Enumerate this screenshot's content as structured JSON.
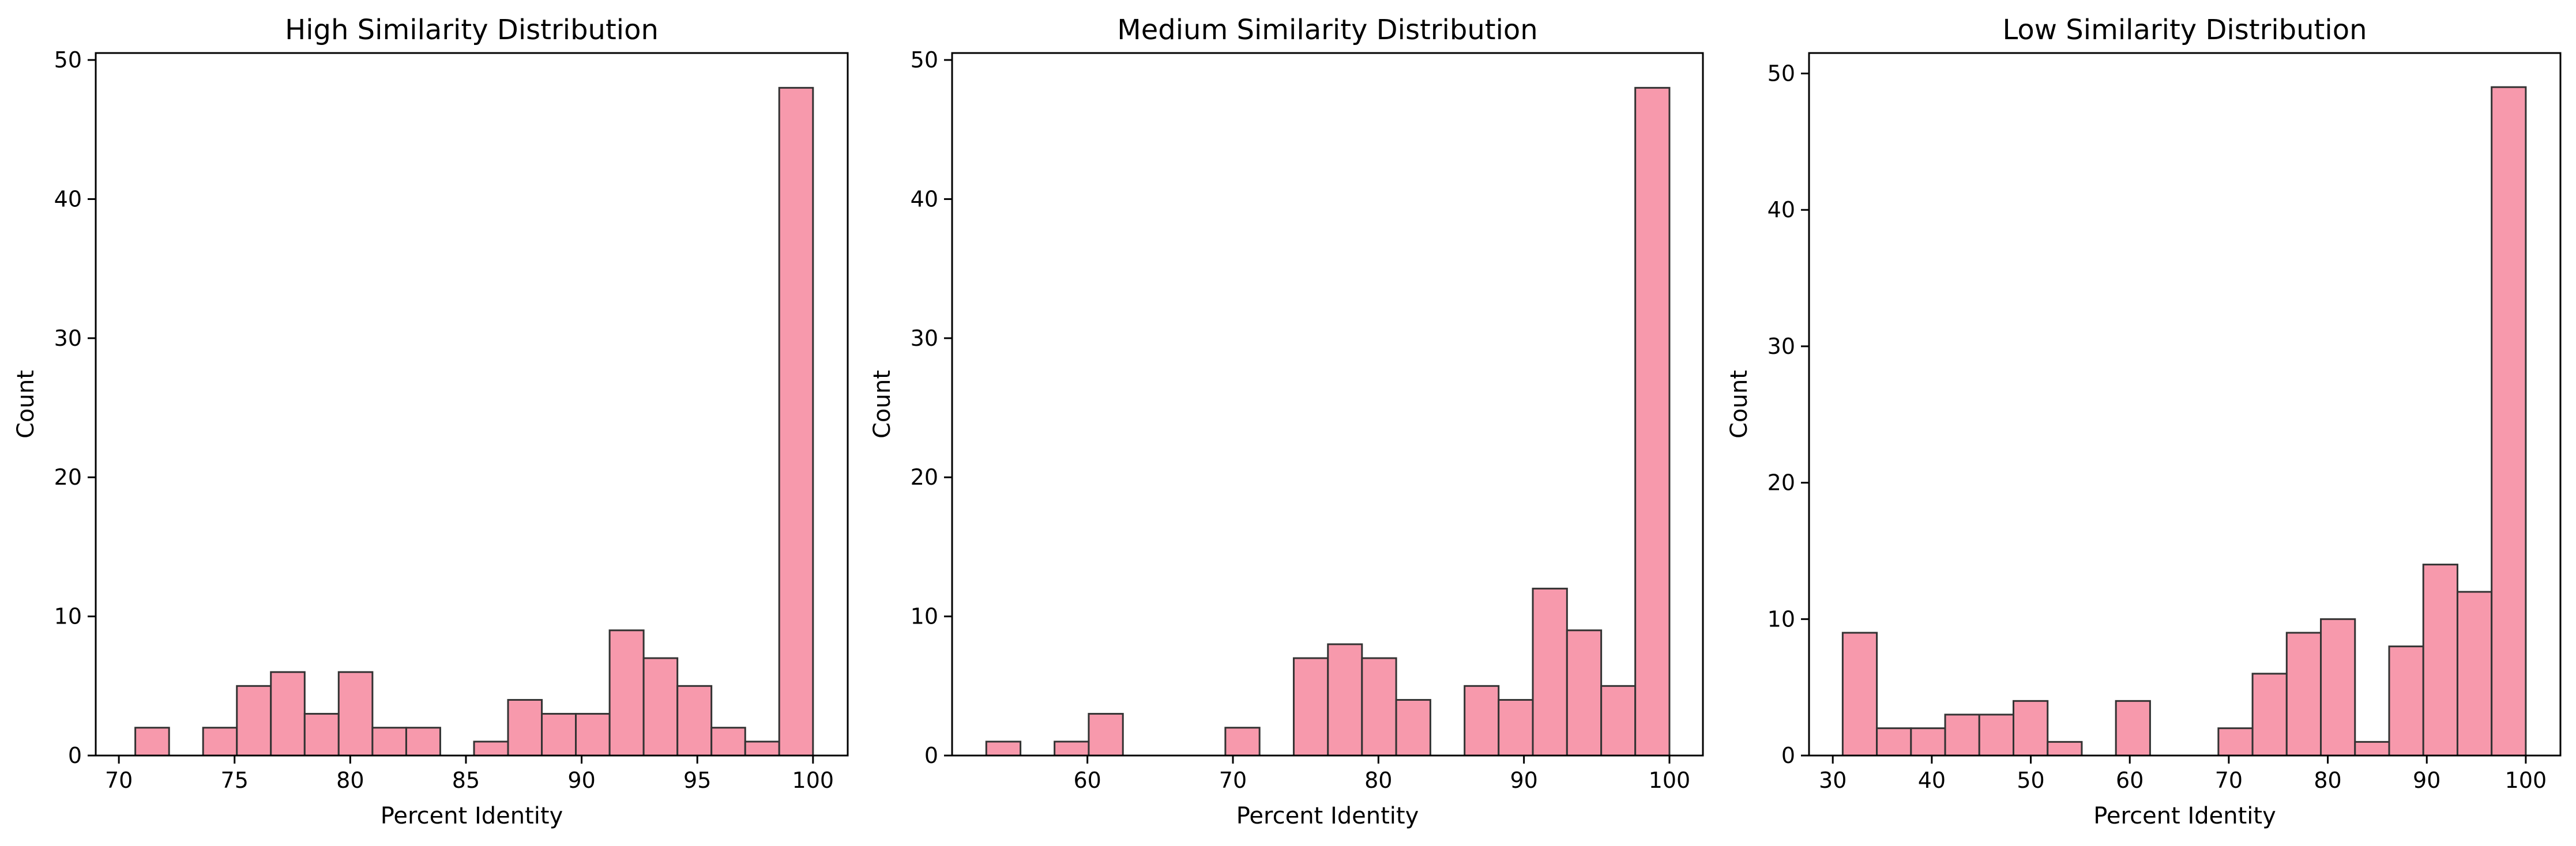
{
  "style": {
    "bar_fill": "#f799ac",
    "bar_edge": "#333333",
    "axis_color": "#000000"
  },
  "chart_data": [
    {
      "type": "bar",
      "title": "High Similarity Distribution",
      "xlabel": "Percent Identity",
      "ylabel": "Count",
      "xlim": [
        69.0,
        101.5
      ],
      "ylim": [
        0,
        50.5
      ],
      "xticks": [
        70,
        75,
        80,
        85,
        90,
        95,
        100
      ],
      "yticks": [
        0,
        10,
        20,
        30,
        40,
        50
      ],
      "bin_edges": [
        70.71,
        72.17,
        73.64,
        75.1,
        76.57,
        78.03,
        79.5,
        80.96,
        82.42,
        83.89,
        85.35,
        86.82,
        88.28,
        89.75,
        91.21,
        92.68,
        94.14,
        95.61,
        97.07,
        98.54,
        100.0
      ],
      "values": [
        2,
        0,
        2,
        5,
        6,
        3,
        6,
        2,
        2,
        0,
        1,
        4,
        3,
        3,
        9,
        7,
        5,
        2,
        1,
        48
      ]
    },
    {
      "type": "bar",
      "title": "Medium Similarity Distribution",
      "xlabel": "Percent Identity",
      "ylabel": "Count",
      "xlim": [
        50.7,
        102.3
      ],
      "ylim": [
        0,
        50.5
      ],
      "xticks": [
        60,
        70,
        80,
        90,
        100
      ],
      "yticks": [
        0,
        10,
        20,
        30,
        40,
        50
      ],
      "bin_edges": [
        53.05,
        55.4,
        57.74,
        60.09,
        62.44,
        64.79,
        67.13,
        69.48,
        71.83,
        74.18,
        76.53,
        78.87,
        81.22,
        83.57,
        85.92,
        88.26,
        90.61,
        92.96,
        95.31,
        97.65,
        100.0
      ],
      "values": [
        1,
        0,
        1,
        3,
        0,
        0,
        0,
        2,
        0,
        7,
        8,
        7,
        4,
        0,
        5,
        4,
        12,
        9,
        5,
        48
      ]
    },
    {
      "type": "bar",
      "title": "Low Similarity Distribution",
      "xlabel": "Percent Identity",
      "ylabel": "Count",
      "xlim": [
        27.6,
        103.5
      ],
      "ylim": [
        0,
        51.5
      ],
      "xticks": [
        30,
        40,
        50,
        60,
        70,
        80,
        90,
        100
      ],
      "yticks": [
        0,
        10,
        20,
        30,
        40,
        50
      ],
      "bin_edges": [
        31.0,
        34.45,
        37.9,
        41.35,
        44.8,
        48.25,
        51.7,
        55.15,
        58.6,
        62.05,
        65.5,
        68.95,
        72.4,
        75.85,
        79.3,
        82.75,
        86.2,
        89.65,
        93.1,
        96.55,
        100.0
      ],
      "values": [
        9,
        2,
        2,
        3,
        3,
        4,
        1,
        0,
        4,
        0,
        0,
        2,
        6,
        9,
        10,
        1,
        8,
        14,
        12,
        49
      ]
    }
  ]
}
